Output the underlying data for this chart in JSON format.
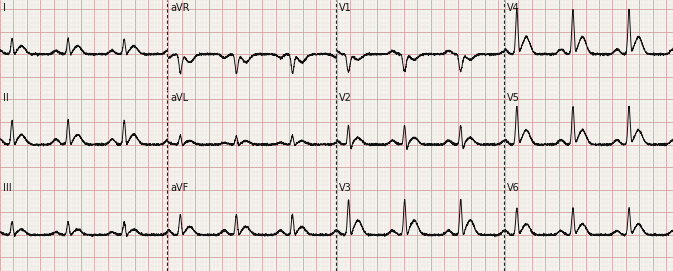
{
  "background_color": "#f5f5f0",
  "grid_major_color": "#d4a0a0",
  "grid_minor_color": "#ecdcdc",
  "line_color": "#111111",
  "line_width": 0.7,
  "fig_width": 6.73,
  "fig_height": 2.71,
  "dpi": 100,
  "rows": 3,
  "cols": 4,
  "lead_labels": [
    [
      "I",
      "aVR",
      "V1",
      "V4"
    ],
    [
      "II",
      "aVL",
      "V2",
      "V5"
    ],
    [
      "III",
      "aVF",
      "V3",
      "V6"
    ]
  ],
  "label_fontsize": 7,
  "hr": 72,
  "sample_rate": 500,
  "duration_per_lead": 2.5,
  "ylim": [
    -0.8,
    1.2
  ],
  "divider_color": "#222222",
  "divider_lw": 0.8
}
